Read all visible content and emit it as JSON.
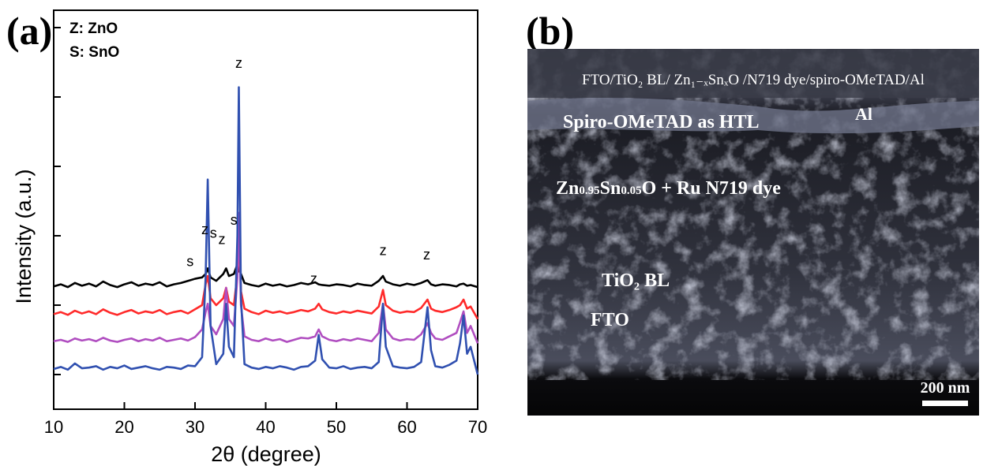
{
  "panel_labels": [
    "(a)",
    "(b)"
  ],
  "chart_data": {
    "type": "line",
    "x_label": "2θ (degree)",
    "y_label": "Intensity (a.u.)",
    "notes": [
      "Z: ZnO",
      "S: SnO"
    ],
    "x": [
      10,
      11,
      12,
      13,
      14,
      15,
      16,
      17,
      18,
      19,
      20,
      21,
      22,
      23,
      24,
      25,
      26,
      27,
      28,
      29,
      30,
      31,
      31.5,
      31.8,
      32.2,
      33,
      34,
      34.4,
      34.8,
      35.5,
      36,
      36.2,
      36.5,
      37,
      38,
      39,
      40,
      41,
      42,
      43,
      44,
      45,
      46,
      47,
      47.5,
      48,
      49,
      50,
      51,
      52,
      53,
      54,
      55,
      56,
      56.6,
      57,
      58,
      59,
      60,
      61,
      62,
      62.9,
      63.4,
      64,
      65,
      66,
      67,
      67.5,
      68,
      68.5,
      69,
      70
    ],
    "series": [
      {
        "color": "#000000",
        "values": [
          1.77,
          1.8,
          1.76,
          1.82,
          1.78,
          1.81,
          1.77,
          1.84,
          1.79,
          1.76,
          1.8,
          1.83,
          1.78,
          1.81,
          1.79,
          1.83,
          1.77,
          1.8,
          1.82,
          1.85,
          1.88,
          1.9,
          1.95,
          2.03,
          1.9,
          1.85,
          1.95,
          2.03,
          1.92,
          1.95,
          2.09,
          2.0,
          1.95,
          1.82,
          1.79,
          1.77,
          1.81,
          1.78,
          1.8,
          1.77,
          1.79,
          1.82,
          1.8,
          1.83,
          1.8,
          1.79,
          1.78,
          1.8,
          1.79,
          1.77,
          1.81,
          1.79,
          1.78,
          1.85,
          1.92,
          1.84,
          1.8,
          1.78,
          1.81,
          1.79,
          1.82,
          1.86,
          1.8,
          1.78,
          1.8,
          1.79,
          1.77,
          1.8,
          1.81,
          1.78,
          1.79,
          1.76
        ]
      },
      {
        "color": "#ff2a2a",
        "values": [
          1.37,
          1.4,
          1.36,
          1.42,
          1.38,
          1.41,
          1.37,
          1.44,
          1.39,
          1.36,
          1.4,
          1.43,
          1.38,
          1.41,
          1.39,
          1.43,
          1.37,
          1.4,
          1.42,
          1.38,
          1.44,
          1.5,
          1.8,
          1.92,
          1.6,
          1.5,
          1.6,
          1.75,
          1.55,
          1.5,
          1.95,
          2.49,
          1.7,
          1.45,
          1.4,
          1.37,
          1.42,
          1.39,
          1.41,
          1.38,
          1.4,
          1.43,
          1.41,
          1.45,
          1.52,
          1.44,
          1.4,
          1.38,
          1.41,
          1.39,
          1.42,
          1.4,
          1.38,
          1.48,
          1.72,
          1.5,
          1.42,
          1.39,
          1.41,
          1.4,
          1.46,
          1.58,
          1.45,
          1.42,
          1.4,
          1.43,
          1.47,
          1.5,
          1.58,
          1.45,
          1.48,
          1.3
        ]
      },
      {
        "color": "#b04ec0",
        "values": [
          0.98,
          1.0,
          0.97,
          1.02,
          0.99,
          1.01,
          0.98,
          1.03,
          0.99,
          0.97,
          1.0,
          1.02,
          0.98,
          1.01,
          0.99,
          1.03,
          0.98,
          1.0,
          1.02,
          0.99,
          1.04,
          1.15,
          1.4,
          1.52,
          1.2,
          1.08,
          1.3,
          1.75,
          1.3,
          1.2,
          1.9,
          2.83,
          1.5,
          1.05,
          1.0,
          0.98,
          1.02,
          0.99,
          1.01,
          0.97,
          1.0,
          1.03,
          1.02,
          1.05,
          1.15,
          1.05,
          1.0,
          0.98,
          1.01,
          0.99,
          1.02,
          1.0,
          0.98,
          1.1,
          1.52,
          1.15,
          1.02,
          0.99,
          1.01,
          1.0,
          1.08,
          1.24,
          1.1,
          1.02,
          1.0,
          1.05,
          1.1,
          1.25,
          1.41,
          1.1,
          1.2,
          0.95
        ]
      },
      {
        "color": "#3050b0",
        "values": [
          0.58,
          0.61,
          0.57,
          0.66,
          0.59,
          0.6,
          0.62,
          0.57,
          0.61,
          0.59,
          0.63,
          0.58,
          0.6,
          0.62,
          0.59,
          0.57,
          0.61,
          0.6,
          0.58,
          0.63,
          0.62,
          0.75,
          1.9,
          3.31,
          1.2,
          0.65,
          0.8,
          1.52,
          0.9,
          0.75,
          2.5,
          4.64,
          1.6,
          0.65,
          0.6,
          0.58,
          0.61,
          0.59,
          0.62,
          0.6,
          0.57,
          0.61,
          0.62,
          0.7,
          1.07,
          0.72,
          0.6,
          0.59,
          0.62,
          0.58,
          0.6,
          0.61,
          0.59,
          0.68,
          1.52,
          0.9,
          0.62,
          0.6,
          0.59,
          0.61,
          0.68,
          1.47,
          0.85,
          0.62,
          0.6,
          0.64,
          0.7,
          0.95,
          1.35,
          0.8,
          0.9,
          0.5
        ]
      }
    ],
    "annotations": [
      {
        "text": "z",
        "x": 36.2,
        "y": 4.92
      },
      {
        "text": "s",
        "x": 29.3,
        "y": 2.06
      },
      {
        "text": "z",
        "x": 31.4,
        "y": 2.52
      },
      {
        "text": "s",
        "x": 32.6,
        "y": 2.47
      },
      {
        "text": "z",
        "x": 33.8,
        "y": 2.38
      },
      {
        "text": "s",
        "x": 35.5,
        "y": 2.66
      },
      {
        "text": "z",
        "x": 46.8,
        "y": 1.81
      },
      {
        "text": "z",
        "x": 56.6,
        "y": 2.22
      },
      {
        "text": "z",
        "x": 62.8,
        "y": 2.16
      }
    ],
    "xlim": [
      10,
      70
    ],
    "xticks": [
      10,
      20,
      30,
      40,
      50,
      60,
      70
    ],
    "ylim": [
      0,
      5.75
    ],
    "yticks": [
      0.5,
      1.5,
      2.5,
      3.5,
      4.5,
      5.5
    ]
  },
  "image": {
    "caption": "FTO/TiO₂ BL/ Zn₁₋ₓSnₓO /N719 dye/spiro-OMeTAD/Al",
    "labels": {
      "al": "Al",
      "htl": "Spiro-OMeTAD as HTL",
      "absorber": [
        "Zn",
        "0.95",
        "Sn",
        "0.05",
        "O + Ru N719 dye"
      ],
      "tio2": "TiO₂ BL",
      "fto": "FTO"
    },
    "scale_bar": "200 nm"
  }
}
